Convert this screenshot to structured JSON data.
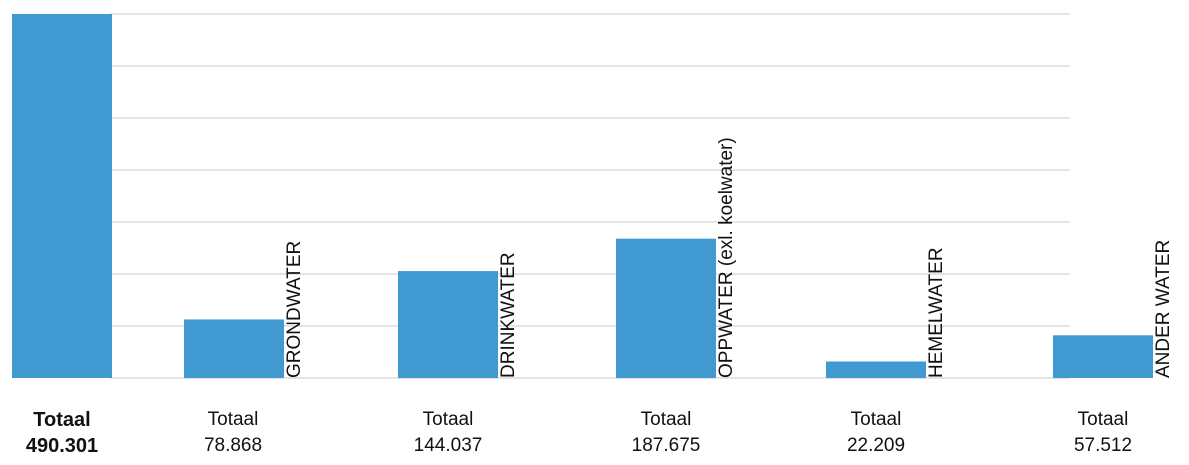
{
  "chart_data": {
    "type": "bar",
    "categories": [
      "GRONDWATER",
      "DRINKWATER",
      "OPPWATER (exl. koelwater)",
      "HEMELWATER",
      "ANDER WATER"
    ],
    "values": [
      78868,
      144037,
      187675,
      22209,
      57512
    ],
    "total": 490301,
    "value_labels": [
      "78.868",
      "144.037",
      "187.675",
      "22.209",
      "57.512"
    ],
    "total_value_label": "490.301",
    "label_prefix": "Totaal",
    "ylim": [
      0,
      490301
    ],
    "grid": true,
    "bar_color": "#4199d1",
    "grid_color": "#e4e4e4"
  }
}
